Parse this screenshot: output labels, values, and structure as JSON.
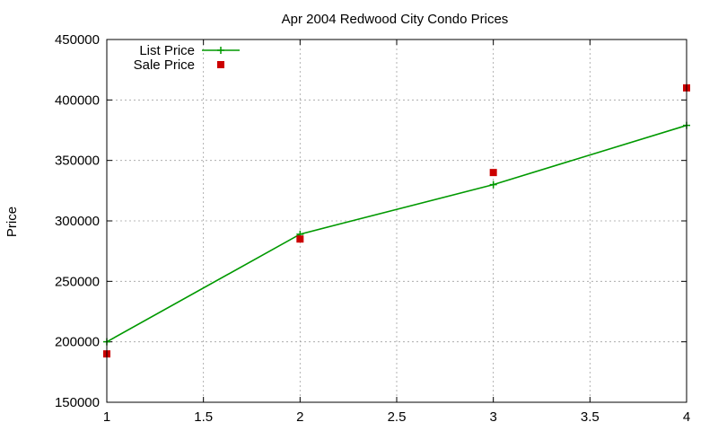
{
  "chart_data": {
    "type": "line",
    "title": "Apr 2004 Redwood City Condo Prices",
    "xlabel": "",
    "ylabel": "Price",
    "xlim": [
      1,
      4
    ],
    "ylim": [
      150000,
      450000
    ],
    "x_ticks": [
      "1",
      "1.5",
      "2",
      "2.5",
      "3",
      "3.5",
      "4"
    ],
    "y_ticks": [
      "150000",
      "200000",
      "250000",
      "300000",
      "350000",
      "400000",
      "450000"
    ],
    "grid": true,
    "legend_position": "top-left",
    "series": [
      {
        "name": "List Price",
        "style": "line+cross",
        "color": "#009900",
        "points": [
          {
            "x": 1,
            "y": 200000
          },
          {
            "x": 2,
            "y": 289000
          },
          {
            "x": 3,
            "y": 330000
          },
          {
            "x": 4,
            "y": 379000
          }
        ]
      },
      {
        "name": "Sale Price",
        "style": "square",
        "color": "#cc0000",
        "points": [
          {
            "x": 1,
            "y": 190000
          },
          {
            "x": 2,
            "y": 285000
          },
          {
            "x": 3,
            "y": 340000
          },
          {
            "x": 4,
            "y": 410000
          }
        ]
      }
    ]
  }
}
